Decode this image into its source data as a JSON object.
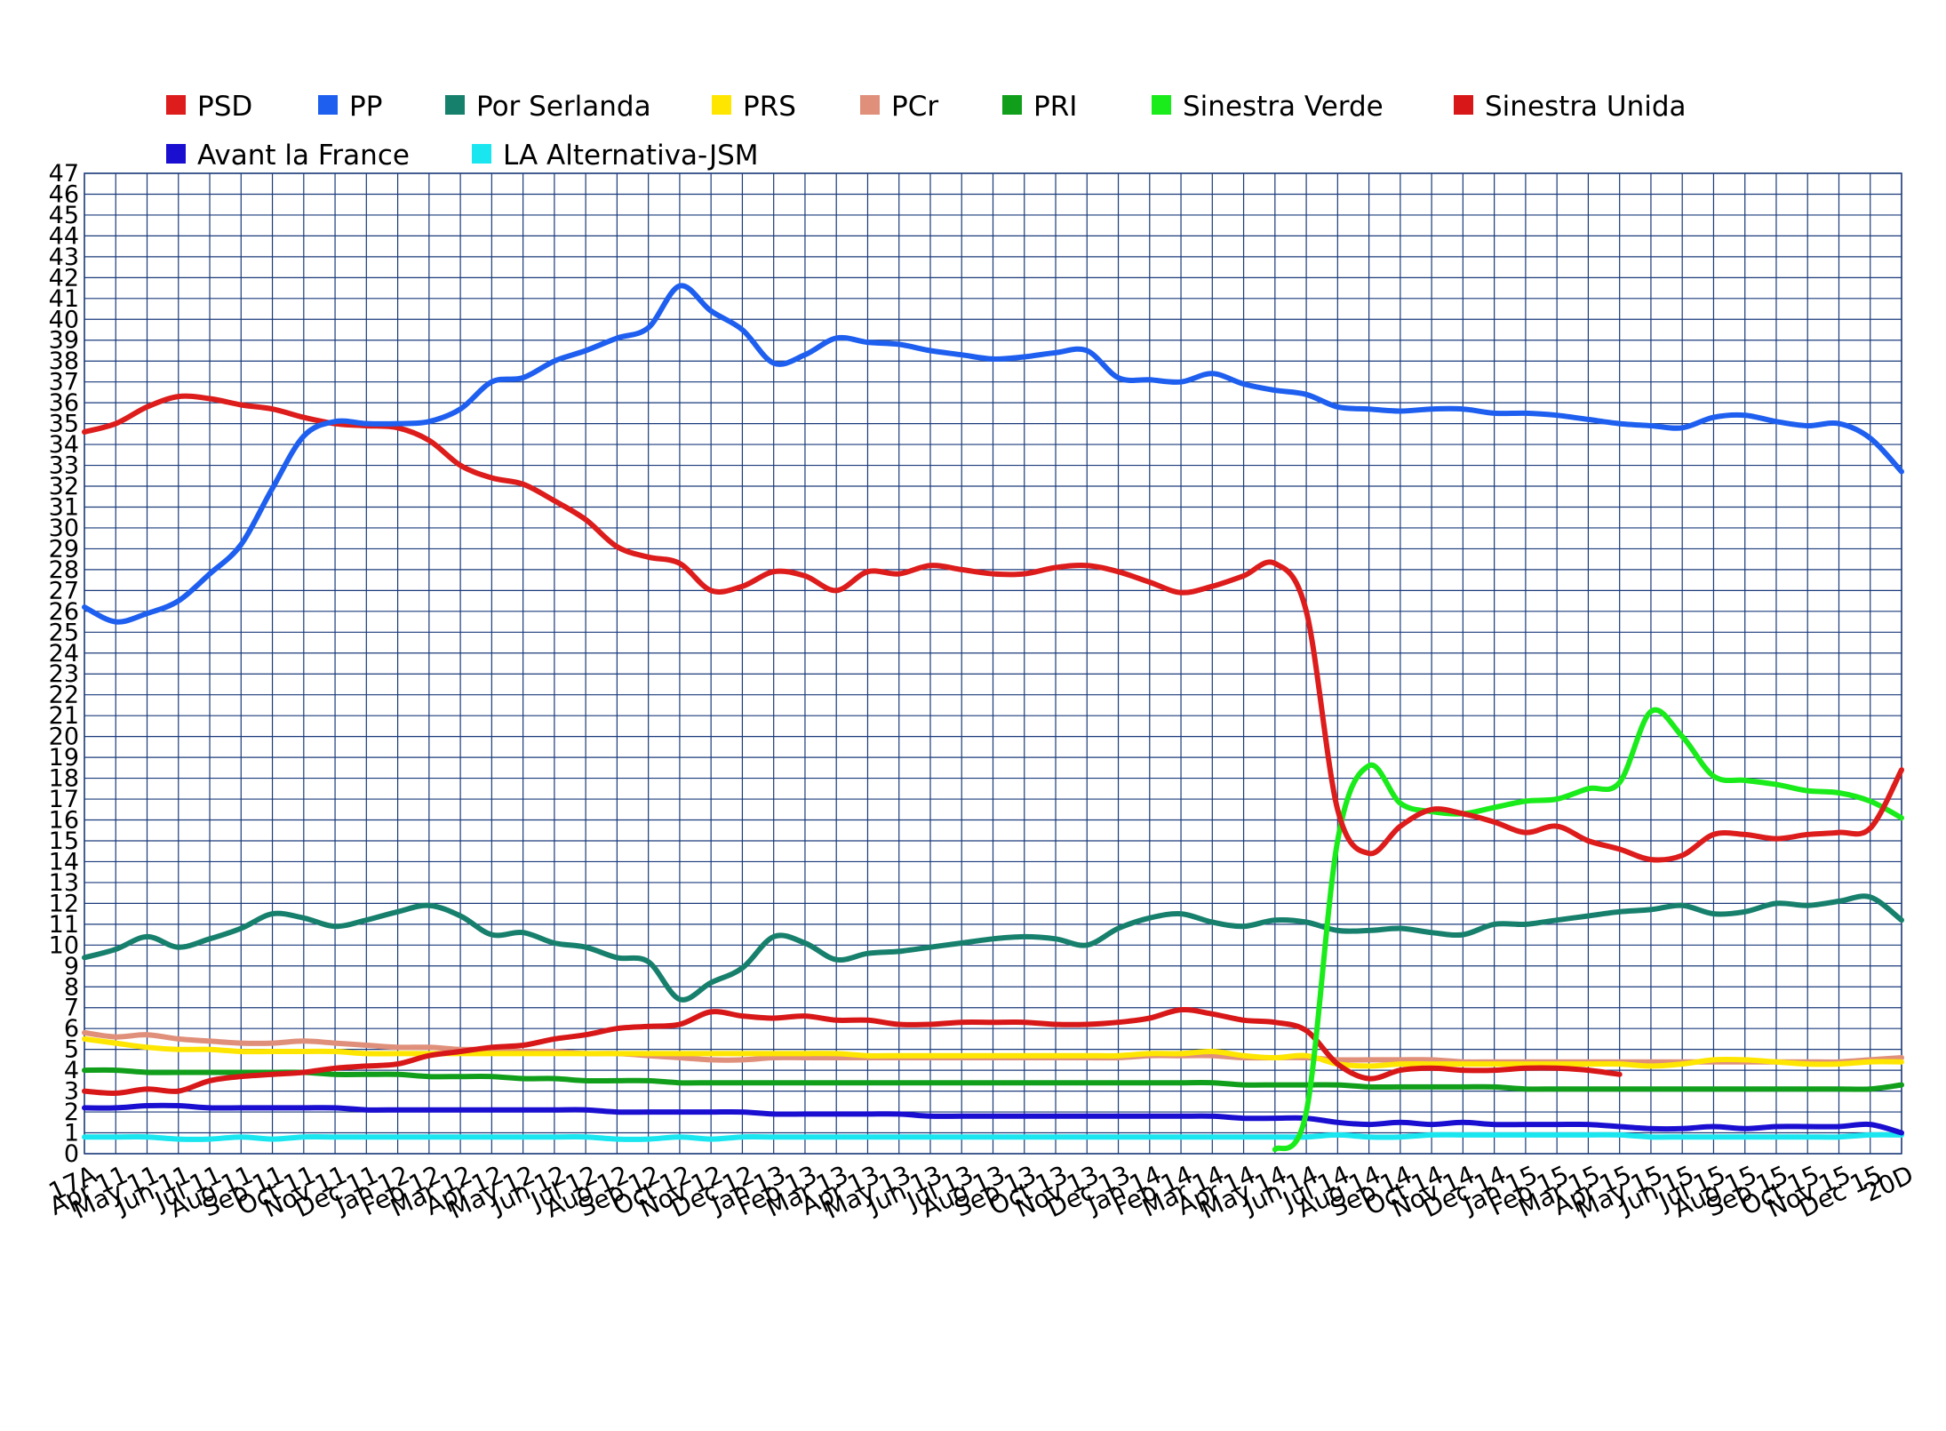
{
  "chart_data": {
    "type": "line",
    "title": "",
    "xlabel": "",
    "ylabel": "",
    "ylim": [
      0,
      47
    ],
    "yticks": [
      0,
      1,
      2,
      3,
      4,
      5,
      6,
      7,
      8,
      9,
      10,
      11,
      12,
      13,
      14,
      15,
      16,
      17,
      18,
      19,
      20,
      21,
      22,
      23,
      24,
      25,
      26,
      27,
      28,
      29,
      30,
      31,
      32,
      33,
      34,
      35,
      36,
      37,
      38,
      39,
      40,
      41,
      42,
      43,
      44,
      45,
      46,
      47
    ],
    "grid": true,
    "legend_position": "top",
    "x_tick_labels": [
      "17A",
      "Apr 11",
      "May 11",
      "Jun 11",
      "Jul 11",
      "Aug 11",
      "Sep 11",
      "Oct 11",
      "Nov 11",
      "Dec 11",
      "Jan 12",
      "Feb 12",
      "Mar 12",
      "Apr 12",
      "May 12",
      "Jun 12",
      "Jul 12",
      "Aug 12",
      "Sep 12",
      "Oct 12",
      "Nov 12",
      "Dec 12",
      "Jan 13",
      "Feb 13",
      "Mar 13",
      "Apr 13",
      "May 13",
      "Jun 13",
      "Jul 13",
      "Aug 13",
      "Sep 13",
      "Oct 13",
      "Nov 13",
      "Dec 13",
      "Jan 14",
      "Feb 14",
      "Mar 14",
      "Apr 14",
      "May 14",
      "Jun 14",
      "Jul 14",
      "Aug 14",
      "Sep 14",
      "Oct 14",
      "Nov 14",
      "Dec 14",
      "Jan 15",
      "Feb 15",
      "Mar 15",
      "Apr 15",
      "May 15",
      "Jun 15",
      "Jul 15",
      "Aug 15",
      "Sep 15",
      "Oct 15",
      "Nov 15",
      "Dec 15",
      "20D"
    ],
    "x_ticks": [
      0,
      1.5,
      3,
      4.5,
      6,
      7.5,
      9,
      10.5,
      12,
      13.5,
      15,
      16.5,
      18,
      19.5,
      21,
      22.5,
      24,
      25.5,
      27,
      28.5,
      30,
      31.5,
      33,
      34.5,
      36,
      37.5,
      39,
      40.5,
      42,
      43.5,
      45,
      46.5,
      48,
      49.5,
      51,
      52.5,
      54,
      55.5,
      57,
      58.5,
      60,
      61.5,
      63,
      64.5,
      66,
      67.5,
      69,
      70.5,
      72,
      73.5,
      75,
      76.5,
      78,
      79.5,
      81,
      82.5,
      84,
      85.5,
      87
    ],
    "x": [
      0,
      1.5,
      3,
      4.5,
      6,
      7.5,
      9,
      10.5,
      12,
      13.5,
      15,
      16.5,
      18,
      19.5,
      21,
      22.5,
      24,
      25.5,
      27,
      28.5,
      30,
      31.5,
      33,
      34.5,
      36,
      37.5,
      39,
      40.5,
      42,
      43.5,
      45,
      46.5,
      48,
      49.5,
      51,
      52.5,
      54,
      55.5,
      57,
      58.5,
      60,
      61.5,
      63,
      64.5,
      66,
      67.5,
      69,
      70.5,
      72,
      73.5,
      75,
      76.5,
      78,
      79.5,
      81,
      82.5,
      84,
      85.5,
      87
    ],
    "series": [
      {
        "name": "PSD",
        "color": "#dd1c1c",
        "values": [
          34.6,
          35.0,
          35.8,
          36.3,
          36.2,
          35.9,
          35.7,
          35.3,
          35.0,
          34.9,
          34.8,
          34.2,
          33.0,
          32.4,
          32.1,
          31.3,
          30.4,
          29.1,
          28.6,
          28.3,
          27.0,
          27.2,
          27.9,
          27.7,
          27.0,
          27.9,
          27.8,
          28.2,
          28.0,
          27.8,
          27.8,
          28.1,
          28.2,
          27.9,
          27.4,
          26.9,
          27.2,
          27.7,
          28.3,
          26.0,
          16.5,
          14.4,
          15.7,
          16.5,
          16.3,
          15.9,
          15.4,
          15.7,
          15.0,
          14.6,
          14.1,
          14.3,
          15.3,
          15.3,
          15.1,
          15.3,
          15.4,
          15.6,
          18.4
        ]
      },
      {
        "name": "PP",
        "color": "#1e5ff0",
        "values": [
          26.2,
          25.5,
          25.9,
          26.5,
          27.8,
          29.2,
          31.9,
          34.4,
          35.1,
          35.0,
          35.0,
          35.1,
          35.7,
          37.0,
          37.2,
          38.0,
          38.5,
          39.1,
          39.6,
          41.6,
          40.4,
          39.5,
          37.9,
          38.3,
          39.1,
          38.9,
          38.8,
          38.5,
          38.3,
          38.1,
          38.2,
          38.4,
          38.5,
          37.2,
          37.1,
          37.0,
          37.4,
          36.9,
          36.6,
          36.4,
          35.8,
          35.7,
          35.6,
          35.7,
          35.7,
          35.5,
          35.5,
          35.4,
          35.2,
          35.0,
          34.9,
          34.8,
          35.3,
          35.4,
          35.1,
          34.9,
          35.0,
          34.3,
          32.7
        ]
      },
      {
        "name": "Por Serlanda",
        "color": "#17806d",
        "values": [
          9.4,
          9.8,
          10.4,
          9.9,
          10.3,
          10.8,
          11.5,
          11.3,
          10.9,
          11.2,
          11.6,
          11.9,
          11.4,
          10.5,
          10.6,
          10.1,
          9.9,
          9.4,
          9.2,
          7.4,
          8.2,
          8.9,
          10.4,
          10.1,
          9.3,
          9.6,
          9.7,
          9.9,
          10.1,
          10.3,
          10.4,
          10.3,
          10.0,
          10.8,
          11.3,
          11.5,
          11.1,
          10.9,
          11.2,
          11.1,
          10.7,
          10.7,
          10.8,
          10.6,
          10.5,
          11.0,
          11.0,
          11.2,
          11.4,
          11.6,
          11.7,
          11.9,
          11.5,
          11.6,
          12.0,
          11.9,
          12.1,
          12.3,
          11.2
        ]
      },
      {
        "name": "PRS",
        "color": "#ffe600",
        "values": [
          5.5,
          5.3,
          5.1,
          5.0,
          5.0,
          4.9,
          4.9,
          4.9,
          4.9,
          4.8,
          4.8,
          4.8,
          4.8,
          4.8,
          4.8,
          4.8,
          4.8,
          4.8,
          4.8,
          4.8,
          4.8,
          4.8,
          4.8,
          4.8,
          4.8,
          4.7,
          4.7,
          4.7,
          4.7,
          4.7,
          4.7,
          4.7,
          4.7,
          4.7,
          4.8,
          4.8,
          4.9,
          4.7,
          4.6,
          4.7,
          4.3,
          4.2,
          4.3,
          4.3,
          4.3,
          4.3,
          4.3,
          4.3,
          4.3,
          4.3,
          4.2,
          4.3,
          4.5,
          4.5,
          4.4,
          4.3,
          4.3,
          4.4,
          4.4
        ]
      },
      {
        "name": "PCr",
        "color": "#e0907a",
        "values": [
          5.8,
          5.6,
          5.7,
          5.5,
          5.4,
          5.3,
          5.3,
          5.4,
          5.3,
          5.2,
          5.1,
          5.1,
          5.0,
          5.0,
          4.9,
          4.9,
          4.8,
          4.8,
          4.7,
          4.6,
          4.5,
          4.5,
          4.6,
          4.6,
          4.6,
          4.6,
          4.6,
          4.6,
          4.6,
          4.6,
          4.6,
          4.6,
          4.6,
          4.6,
          4.7,
          4.7,
          4.7,
          4.6,
          4.6,
          4.6,
          4.5,
          4.5,
          4.5,
          4.5,
          4.4,
          4.4,
          4.4,
          4.4,
          4.4,
          4.4,
          4.4,
          4.4,
          4.4,
          4.4,
          4.4,
          4.4,
          4.4,
          4.5,
          4.6
        ]
      },
      {
        "name": "PRI",
        "color": "#119e1b",
        "values": [
          4.0,
          4.0,
          3.9,
          3.9,
          3.9,
          3.9,
          3.9,
          3.9,
          3.8,
          3.8,
          3.8,
          3.7,
          3.7,
          3.7,
          3.6,
          3.6,
          3.5,
          3.5,
          3.5,
          3.4,
          3.4,
          3.4,
          3.4,
          3.4,
          3.4,
          3.4,
          3.4,
          3.4,
          3.4,
          3.4,
          3.4,
          3.4,
          3.4,
          3.4,
          3.4,
          3.4,
          3.4,
          3.3,
          3.3,
          3.3,
          3.3,
          3.2,
          3.2,
          3.2,
          3.2,
          3.2,
          3.1,
          3.1,
          3.1,
          3.1,
          3.1,
          3.1,
          3.1,
          3.1,
          3.1,
          3.1,
          3.1,
          3.1,
          3.3
        ]
      },
      {
        "name": "Sinestra Verde",
        "color": "#1aeb1a",
        "values": [
          null,
          null,
          null,
          null,
          null,
          null,
          null,
          null,
          null,
          null,
          null,
          null,
          null,
          null,
          null,
          null,
          null,
          null,
          null,
          null,
          null,
          null,
          null,
          null,
          null,
          null,
          null,
          null,
          null,
          null,
          null,
          null,
          null,
          null,
          null,
          null,
          null,
          null,
          0.2,
          2.0,
          15.0,
          18.6,
          16.8,
          16.4,
          16.3,
          16.6,
          16.9,
          17.0,
          17.5,
          17.8,
          21.2,
          20.0,
          18.1,
          17.9,
          17.7,
          17.4,
          17.3,
          16.9,
          16.1
        ]
      },
      {
        "name": "Sinestra Unida",
        "color": "#d81818",
        "values": [
          3.0,
          2.9,
          3.1,
          3.0,
          3.5,
          3.7,
          3.8,
          3.9,
          4.1,
          4.2,
          4.3,
          4.7,
          4.9,
          5.1,
          5.2,
          5.5,
          5.7,
          6.0,
          6.1,
          6.2,
          6.8,
          6.6,
          6.5,
          6.6,
          6.4,
          6.4,
          6.2,
          6.2,
          6.3,
          6.3,
          6.3,
          6.2,
          6.2,
          6.3,
          6.5,
          6.9,
          6.7,
          6.4,
          6.3,
          5.9,
          4.3,
          3.6,
          4.0,
          4.1,
          4.0,
          4.0,
          4.1,
          4.1,
          4.0,
          3.8,
          null,
          null,
          null,
          null,
          null,
          null,
          null,
          null,
          null
        ]
      },
      {
        "name": "Avant la France",
        "color": "#1a0fd0",
        "values": [
          2.2,
          2.2,
          2.3,
          2.3,
          2.2,
          2.2,
          2.2,
          2.2,
          2.2,
          2.1,
          2.1,
          2.1,
          2.1,
          2.1,
          2.1,
          2.1,
          2.1,
          2.0,
          2.0,
          2.0,
          2.0,
          2.0,
          1.9,
          1.9,
          1.9,
          1.9,
          1.9,
          1.8,
          1.8,
          1.8,
          1.8,
          1.8,
          1.8,
          1.8,
          1.8,
          1.8,
          1.8,
          1.7,
          1.7,
          1.7,
          1.5,
          1.4,
          1.5,
          1.4,
          1.5,
          1.4,
          1.4,
          1.4,
          1.4,
          1.3,
          1.2,
          1.2,
          1.3,
          1.2,
          1.3,
          1.3,
          1.3,
          1.4,
          1.0
        ]
      },
      {
        "name": "LA Alternativa-JSM",
        "color": "#1ae6f0",
        "values": [
          0.8,
          0.8,
          0.8,
          0.7,
          0.7,
          0.8,
          0.7,
          0.8,
          0.8,
          0.8,
          0.8,
          0.8,
          0.8,
          0.8,
          0.8,
          0.8,
          0.8,
          0.7,
          0.7,
          0.8,
          0.7,
          0.8,
          0.8,
          0.8,
          0.8,
          0.8,
          0.8,
          0.8,
          0.8,
          0.8,
          0.8,
          0.8,
          0.8,
          0.8,
          0.8,
          0.8,
          0.8,
          0.8,
          0.8,
          0.8,
          0.9,
          0.8,
          0.8,
          0.9,
          0.9,
          0.9,
          0.9,
          0.9,
          0.9,
          0.9,
          0.8,
          0.8,
          0.8,
          0.8,
          0.8,
          0.8,
          0.8,
          0.9,
          0.9
        ]
      }
    ]
  }
}
